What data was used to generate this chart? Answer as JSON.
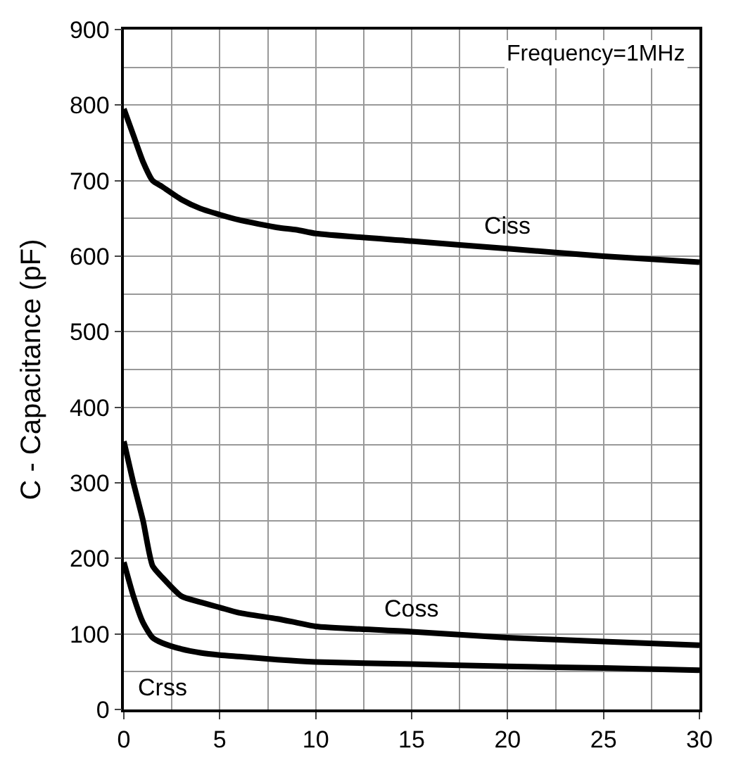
{
  "chart_data": {
    "type": "line",
    "ylabel": "C - Capacitance (pF)",
    "annotations": [
      "Frequency=1MHz"
    ],
    "xlim": [
      0,
      30
    ],
    "ylim": [
      0,
      900
    ],
    "xticks": [
      0,
      5,
      10,
      15,
      20,
      25,
      30
    ],
    "yticks": [
      0,
      100,
      200,
      300,
      400,
      500,
      600,
      700,
      800,
      900
    ],
    "grid": true,
    "legend": false,
    "marker": "none",
    "line_style": "solid",
    "series": [
      {
        "name": "Ciss",
        "color": "#000000",
        "x": [
          0,
          0.5,
          1,
          1.5,
          2,
          3,
          4,
          5,
          6,
          8,
          9,
          10,
          15,
          20,
          25,
          30
        ],
        "values": [
          795,
          760,
          725,
          700,
          692,
          675,
          663,
          655,
          648,
          638,
          635,
          630,
          620,
          610,
          600,
          592
        ]
      },
      {
        "name": "Coss",
        "color": "#000000",
        "x": [
          0,
          0.5,
          1,
          1.5,
          2,
          3,
          4,
          5,
          6,
          8,
          9,
          10,
          15,
          20,
          25,
          30
        ],
        "values": [
          355,
          300,
          250,
          190,
          175,
          150,
          142,
          135,
          128,
          120,
          115,
          110,
          103,
          95,
          90,
          85
        ]
      },
      {
        "name": "Crss",
        "color": "#000000",
        "x": [
          0,
          0.5,
          1,
          1.5,
          2,
          3,
          4,
          5,
          6,
          8,
          10,
          15,
          20,
          25,
          30
        ],
        "values": [
          195,
          150,
          115,
          95,
          88,
          80,
          75,
          72,
          70,
          66,
          63,
          60,
          57,
          55,
          52
        ]
      }
    ]
  }
}
